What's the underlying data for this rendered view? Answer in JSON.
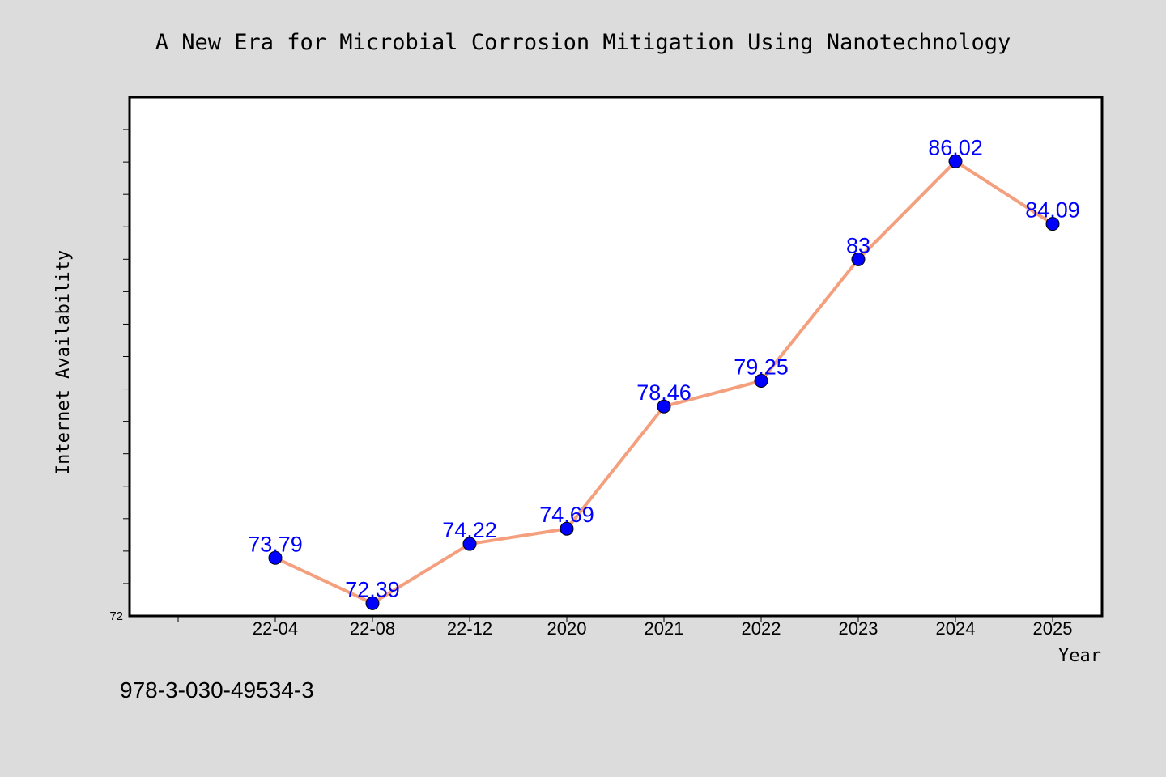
{
  "chart_data": {
    "type": "line",
    "title": "A New Era for Microbial Corrosion Mitigation Using Nanotechnology",
    "xlabel": "Year",
    "ylabel": "Internet Availability",
    "categories": [
      "22-04",
      "22-08",
      "22-12",
      "2020",
      "2021",
      "2022",
      "2023",
      "2024",
      "2025"
    ],
    "series": [
      {
        "values": [
          73.79,
          72.39,
          74.22,
          74.69,
          78.46,
          79.25,
          83,
          86.02,
          84.09
        ]
      }
    ],
    "data_labels": [
      "73.79",
      "72.39",
      "74.22",
      "74.69",
      "78.46",
      "79.25",
      "83",
      "86.02",
      "84.09"
    ],
    "ylim": [
      72,
      88
    ],
    "ytick_label": "72",
    "grid": false,
    "colors": {
      "line": "#f4a07e",
      "marker": "#0000ff",
      "label": "#0000ff",
      "background": "#dcdcdc",
      "plot_background": "#ffffff"
    }
  },
  "footer": {
    "id": "978-3-030-49534-3"
  }
}
